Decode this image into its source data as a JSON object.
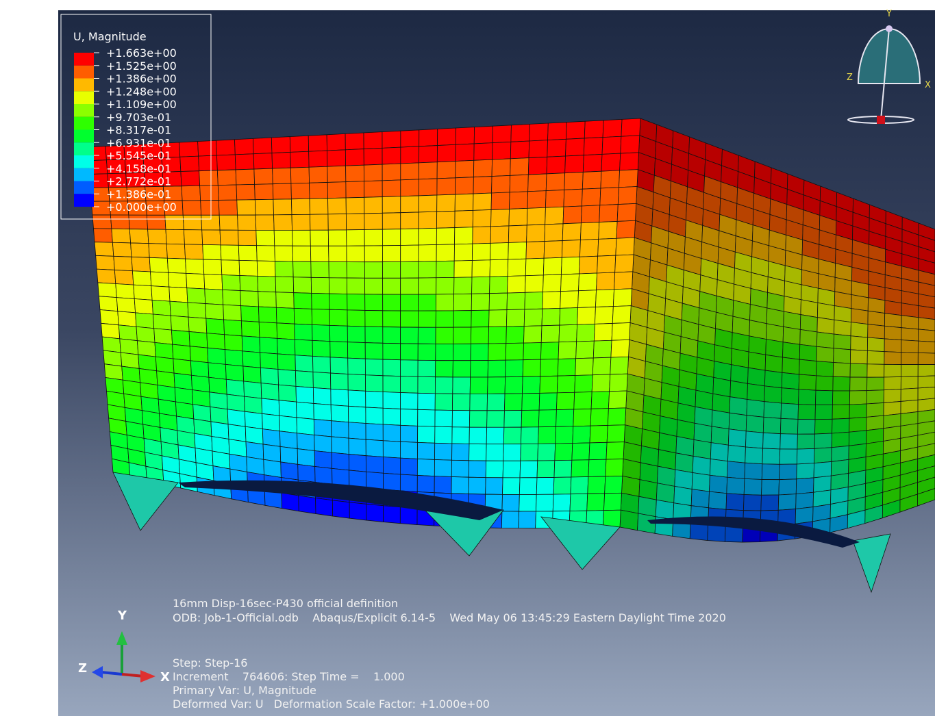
{
  "viewport": {
    "legend": {
      "title": "U, Magnitude",
      "labels": [
        "+1.663e+00",
        "+1.525e+00",
        "+1.386e+00",
        "+1.248e+00",
        "+1.109e+00",
        "+9.703e-01",
        "+8.317e-01",
        "+6.931e-01",
        "+5.545e-01",
        "+4.158e-01",
        "+2.772e-01",
        "+1.386e-01",
        "+0.000e+00"
      ],
      "colors": [
        "#ff0000",
        "#ff5d00",
        "#ffb900",
        "#e8ff00",
        "#8bff00",
        "#2eff00",
        "#00ff2e",
        "#00ff8b",
        "#00ffe8",
        "#00b9ff",
        "#005dff",
        "#0000ff"
      ]
    },
    "info": {
      "title": "16mm Disp-16sec-P430 official definition",
      "odb": "ODB: Job-1-Official.odb    Abaqus/Explicit 6.14-5    Wed May 06 13:45:29 Eastern Daylight Time 2020",
      "step": "Step: Step-16",
      "increment": "Increment    764606: Step Time =    1.000",
      "primary": "Primary Var: U, Magnitude",
      "deformed": "Deformed Var: U   Deformation Scale Factor: +1.000e+00"
    },
    "triad": {
      "y": "Y",
      "z": "Z",
      "x": "X"
    },
    "compass": {
      "y": "Y",
      "z": "Z",
      "x": "X"
    }
  }
}
